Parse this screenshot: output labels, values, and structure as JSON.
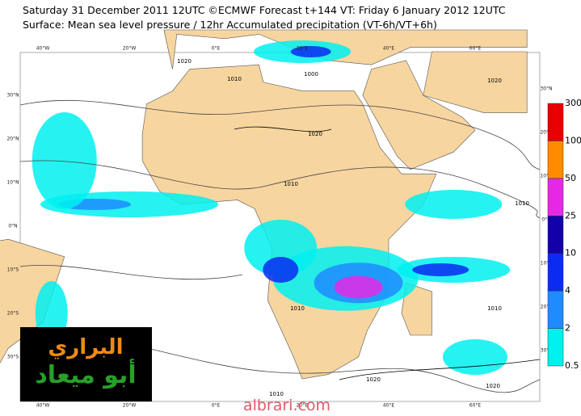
{
  "header": {
    "title": "Saturday 31 December 2011 12UTC ©ECMWF Forecast t+144 VT: Friday 6 January 2012 12UTC",
    "subtitle": "Surface: Mean sea level pressure / 12hr Accumulated precipitation (VT-6h/VT+6h)"
  },
  "map": {
    "lon_labels": [
      "40°W",
      "20°W",
      "0°E",
      "20°E",
      "40°E",
      "60°E"
    ],
    "lat_labels": [
      "30°N",
      "20°N",
      "10°N",
      "0°N",
      "10°S",
      "20°S",
      "30°S"
    ],
    "isobar_labels": [
      "1020",
      "1010",
      "1000",
      "1020",
      "1020",
      "1010",
      "1010",
      "1010",
      "1010",
      "1020",
      "1020",
      "1010"
    ]
  },
  "legend": {
    "ticks": [
      0.5,
      2,
      4,
      10,
      25,
      50,
      100,
      300
    ],
    "colors": [
      "#00f0f0",
      "#1e8cff",
      "#0a2cf0",
      "#1400a8",
      "#e628e6",
      "#ff8c00",
      "#e60000"
    ]
  },
  "logo": {
    "line1": "البراري",
    "line2": "أبو ميعاد"
  },
  "watermark": "albrari.com"
}
